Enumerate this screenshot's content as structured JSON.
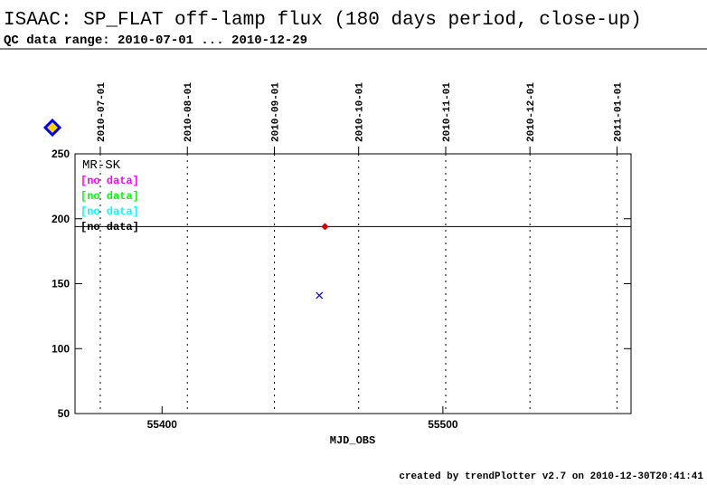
{
  "chart_data": {
    "type": "scatter",
    "title": "ISAAC: SP_FLAT off-lamp flux (180 days period, close-up)",
    "subtitle": "QC data range: 2010-07-01 ... 2010-12-29",
    "x_label": "MJD_OBS",
    "footer": "created by trendPlotter v2.7 on 2010-12-30T20:41:41",
    "xlim": [
      55369,
      55567
    ],
    "ylim": [
      50,
      250
    ],
    "xticks": [
      55400,
      55500
    ],
    "yticks": [
      50,
      100,
      150,
      200,
      250
    ],
    "date_ticks": [
      {
        "value": 55378,
        "label": "2010-07-01"
      },
      {
        "value": 55409,
        "label": "2010-08-01"
      },
      {
        "value": 55440,
        "label": "2010-09-01"
      },
      {
        "value": 55470,
        "label": "2010-10-01"
      },
      {
        "value": 55501,
        "label": "2010-11-01"
      },
      {
        "value": 55531,
        "label": "2010-12-01"
      },
      {
        "value": 55562,
        "label": "2011-01-01"
      }
    ],
    "reference_line": 194,
    "points": [
      {
        "x": 55458,
        "y": 194,
        "color": "#d00000",
        "marker": "diamond"
      },
      {
        "x": 55456,
        "y": 141,
        "color": "#0000ff",
        "marker": "x"
      }
    ],
    "legend": {
      "title": "MR-SK",
      "entries": [
        {
          "label": "[no data]",
          "color": "#ff00ff"
        },
        {
          "label": "[no data]",
          "color": "#00ff00"
        },
        {
          "label": "[no data]",
          "color": "#00ffff"
        },
        {
          "label": "[no data]",
          "color": "#000000"
        }
      ]
    }
  }
}
